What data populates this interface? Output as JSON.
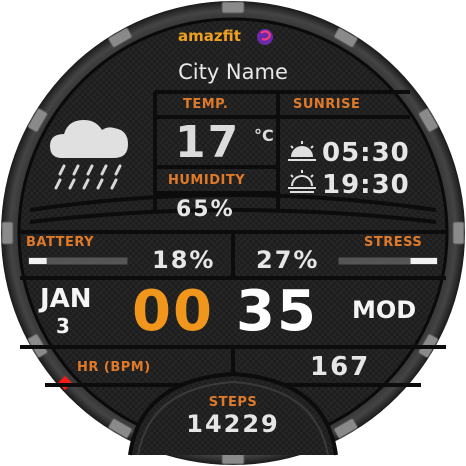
{
  "brand": {
    "logo_text": "amazfit"
  },
  "location": {
    "city": "City Name"
  },
  "weather": {
    "icon": "rain-cloud-icon",
    "temp_label": "TEMP.",
    "temperature": "17",
    "temp_unit": "°C",
    "humidity_label": "HUMIDITY",
    "humidity": "65%"
  },
  "sun": {
    "label": "SUNRISE",
    "sunrise_icon": "sunrise-icon",
    "sunrise": "05:30",
    "sunset_icon": "sunset-icon",
    "sunset": "19:30"
  },
  "battery": {
    "label": "BATTERY",
    "percent": "18%",
    "level": 0.18
  },
  "stress": {
    "label": "STRESS",
    "percent": "27%",
    "level": 0.27
  },
  "date": {
    "month": "JAN",
    "day": "3",
    "weekday": "MOD"
  },
  "time": {
    "hours": "00",
    "minutes": "35"
  },
  "heart": {
    "label": "HR (BPM)",
    "value": "167"
  },
  "steps": {
    "label": "STEPS",
    "value": "14229"
  },
  "colors": {
    "accent": "#f0961c",
    "label": "#e07a28",
    "bg": "#1c1c1c",
    "indicator": "#ff1a1a"
  }
}
